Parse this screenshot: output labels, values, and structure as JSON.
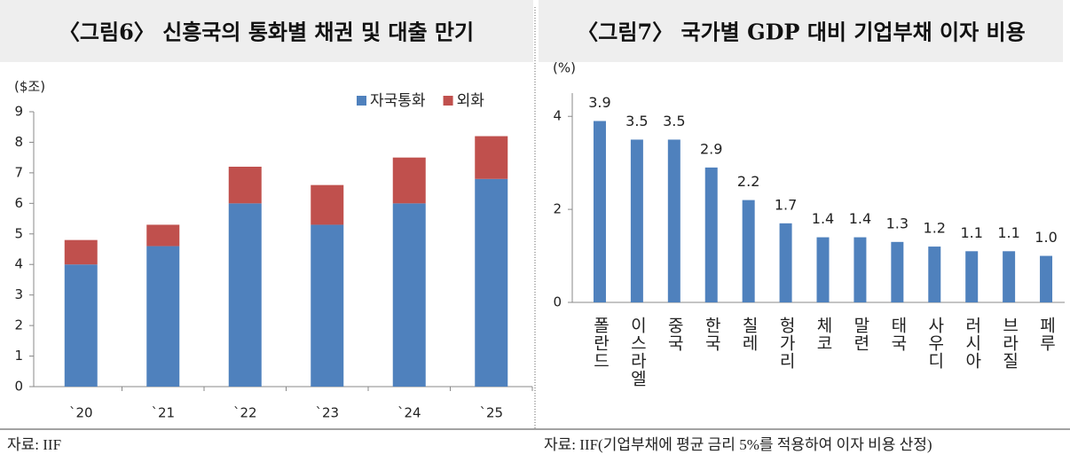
{
  "chart_data": [
    {
      "type": "stacked_bar",
      "title": "〈그림6〉 신흥국의 통화별 채권 및 대출 만기",
      "y_label": "($조)",
      "categories": [
        "`20",
        "`21",
        "`22",
        "`23",
        "`24",
        "`25"
      ],
      "series": [
        {
          "name": "자국통화",
          "color": "#4f81bd",
          "values": [
            4.0,
            4.6,
            6.0,
            5.3,
            6.0,
            6.8
          ]
        },
        {
          "name": "외화",
          "color": "#c0504d",
          "values": [
            0.8,
            0.7,
            1.2,
            1.3,
            1.5,
            1.4
          ]
        }
      ],
      "ylim": [
        0,
        9
      ],
      "yticks": [
        0,
        1,
        2,
        3,
        4,
        5,
        6,
        7,
        8,
        9
      ],
      "legend": "top-right",
      "source": "자료: IIF"
    },
    {
      "type": "bar",
      "title": "〈그림7〉 국가별 GDP 대비 기업부채 이자 비용",
      "y_label": "(%)",
      "categories": [
        "폴란드",
        "이스라엘",
        "중국",
        "한국",
        "칠레",
        "헝가리",
        "체코",
        "말련",
        "태국",
        "사우디",
        "러시아",
        "브라질",
        "페루"
      ],
      "values": [
        3.9,
        3.5,
        3.5,
        2.9,
        2.2,
        1.7,
        1.4,
        1.4,
        1.3,
        1.2,
        1.1,
        1.1,
        1.0
      ],
      "value_labels": [
        "3.9",
        "3.5",
        "3.5",
        "2.9",
        "2.2",
        "1.7",
        "1.4",
        "1.4",
        "1.3",
        "1.2",
        "1.1",
        "1.1",
        "1.0"
      ],
      "color": "#4f81bd",
      "ylim": [
        0,
        4.5
      ],
      "yticks": [
        0,
        2,
        4
      ],
      "source": "자료: IIF(기업부채에 평균 금리 5%를 적용하여 이자 비용 산정)"
    }
  ]
}
